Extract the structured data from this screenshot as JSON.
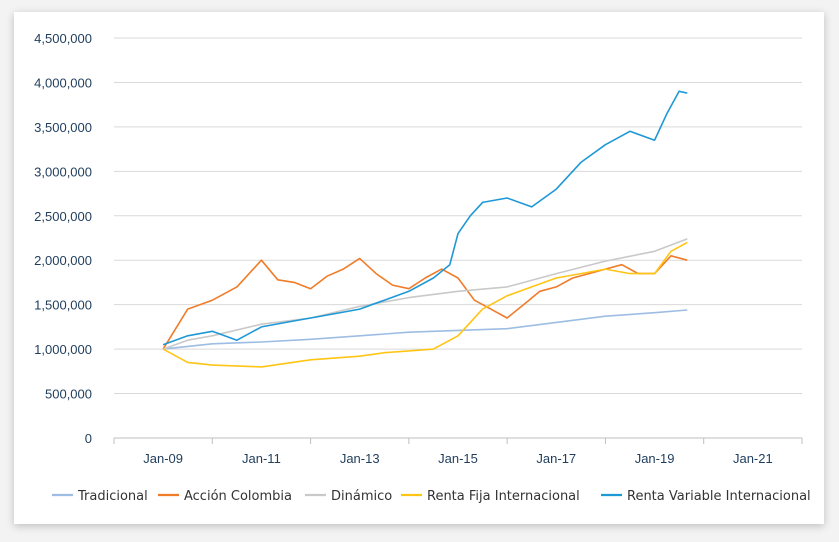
{
  "chart_data": {
    "type": "line",
    "title": "",
    "xlabel": "",
    "ylabel": "",
    "x_ticks": [
      "Jan-09",
      "Jan-11",
      "Jan-13",
      "Jan-15",
      "Jan-17",
      "Jan-19",
      "Jan-21"
    ],
    "x_range": [
      "2008-01",
      "2022-01"
    ],
    "ylim": [
      0,
      4500000
    ],
    "y_ticks": [
      "0",
      "500,000",
      "1,000,000",
      "1,500,000",
      "2,000,000",
      "2,500,000",
      "3,000,000",
      "3,500,000",
      "4,000,000",
      "4,500,000"
    ],
    "grid": "horizontal",
    "legend_position": "bottom",
    "series": [
      {
        "name": "Tradicional",
        "color": "#9dbde3",
        "x": [
          "2009-01",
          "2010-01",
          "2011-01",
          "2012-01",
          "2013-01",
          "2014-01",
          "2015-01",
          "2016-01",
          "2017-01",
          "2018-01",
          "2019-01",
          "2019-09"
        ],
        "values": [
          1000000,
          1060000,
          1080000,
          1110000,
          1150000,
          1190000,
          1210000,
          1230000,
          1300000,
          1370000,
          1410000,
          1440000
        ]
      },
      {
        "name": "Acción Colombia",
        "color": "#f07c29",
        "x": [
          "2009-01",
          "2009-03",
          "2009-07",
          "2010-01",
          "2010-07",
          "2011-01",
          "2011-05",
          "2011-09",
          "2012-01",
          "2012-05",
          "2012-09",
          "2013-01",
          "2013-05",
          "2013-09",
          "2014-01",
          "2014-05",
          "2014-09",
          "2015-01",
          "2015-05",
          "2015-09",
          "2016-01",
          "2016-05",
          "2016-09",
          "2017-01",
          "2017-05",
          "2017-09",
          "2018-01",
          "2018-05",
          "2018-09",
          "2019-01",
          "2019-05",
          "2019-09"
        ],
        "values": [
          1000000,
          1150000,
          1450000,
          1550000,
          1700000,
          2000000,
          1780000,
          1750000,
          1680000,
          1820000,
          1900000,
          2020000,
          1850000,
          1720000,
          1680000,
          1800000,
          1900000,
          1800000,
          1550000,
          1450000,
          1350000,
          1500000,
          1650000,
          1700000,
          1800000,
          1850000,
          1900000,
          1950000,
          1850000,
          1850000,
          2050000,
          2000000
        ]
      },
      {
        "name": "Dinámico",
        "color": "#c9c9c9",
        "x": [
          "2009-01",
          "2009-07",
          "2010-01",
          "2011-01",
          "2012-01",
          "2013-01",
          "2014-01",
          "2015-01",
          "2016-01",
          "2017-01",
          "2018-01",
          "2019-01",
          "2019-09"
        ],
        "values": [
          1000000,
          1100000,
          1150000,
          1280000,
          1350000,
          1480000,
          1580000,
          1650000,
          1700000,
          1850000,
          1990000,
          2100000,
          2240000
        ]
      },
      {
        "name": "Renta Fija Internacional",
        "color": "#ffc515",
        "x": [
          "2009-01",
          "2009-07",
          "2010-01",
          "2011-01",
          "2012-01",
          "2013-01",
          "2013-07",
          "2014-01",
          "2014-07",
          "2015-01",
          "2015-07",
          "2016-01",
          "2016-07",
          "2017-01",
          "2017-07",
          "2018-01",
          "2018-07",
          "2019-01",
          "2019-05",
          "2019-09"
        ],
        "values": [
          1000000,
          850000,
          820000,
          800000,
          880000,
          920000,
          960000,
          980000,
          1000000,
          1150000,
          1450000,
          1600000,
          1700000,
          1800000,
          1850000,
          1900000,
          1850000,
          1850000,
          2100000,
          2200000
        ]
      },
      {
        "name": "Renta Variable Internacional",
        "color": "#1e98d6",
        "x": [
          "2009-01",
          "2009-07",
          "2010-01",
          "2010-07",
          "2011-01",
          "2011-07",
          "2012-01",
          "2012-07",
          "2013-01",
          "2013-07",
          "2014-01",
          "2014-07",
          "2014-11",
          "2015-01",
          "2015-04",
          "2015-07",
          "2016-01",
          "2016-07",
          "2017-01",
          "2017-07",
          "2018-01",
          "2018-07",
          "2019-01",
          "2019-04",
          "2019-07",
          "2019-09"
        ],
        "values": [
          1050000,
          1150000,
          1200000,
          1100000,
          1250000,
          1300000,
          1350000,
          1400000,
          1450000,
          1550000,
          1650000,
          1800000,
          1950000,
          2300000,
          2500000,
          2650000,
          2700000,
          2600000,
          2800000,
          3100000,
          3300000,
          3450000,
          3350000,
          3650000,
          3900000,
          3880000
        ]
      }
    ]
  }
}
